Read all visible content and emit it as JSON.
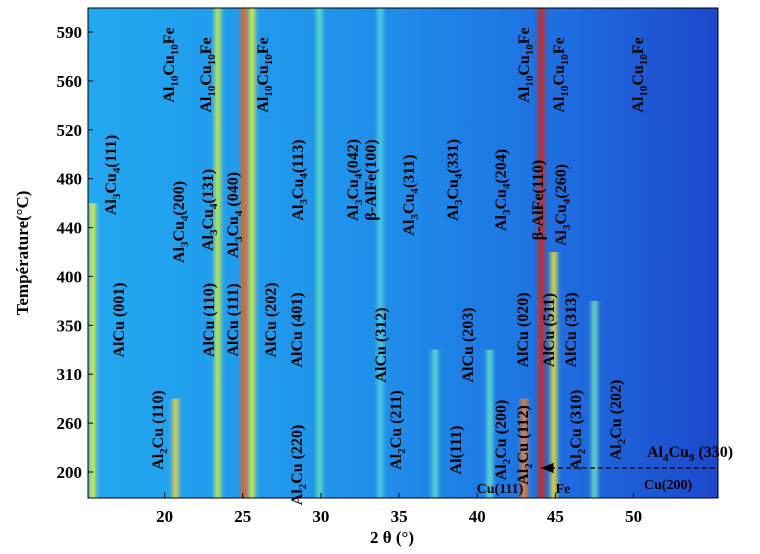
{
  "chart_data": {
    "type": "xrd_map",
    "x_label": "2 θ (°)",
    "y_label": "Température(°C)",
    "xlim": [
      15.1,
      55.4
    ],
    "xticks": [
      20,
      25,
      30,
      35,
      40,
      45,
      50
    ],
    "y_categories": [
      200,
      260,
      310,
      350,
      400,
      440,
      480,
      520,
      560,
      590
    ],
    "peaks": [
      {
        "x": 15.4,
        "color": "#e8f040",
        "t": [
          200,
          440
        ]
      },
      {
        "x": 20.7,
        "color": "#f0d040",
        "t": [
          200,
          260
        ]
      },
      {
        "x": 23.4,
        "color": "#c8f050",
        "t": [
          200,
          590
        ]
      },
      {
        "x": 25.1,
        "color": "#ff6010",
        "t": [
          200,
          590
        ]
      },
      {
        "x": 25.6,
        "color": "#e0f040",
        "t": [
          200,
          590
        ]
      },
      {
        "x": 29.9,
        "color": "#60e0c0",
        "t": [
          200,
          590
        ]
      },
      {
        "x": 33.8,
        "color": "#50d0e0",
        "t": [
          200,
          590
        ]
      },
      {
        "x": 37.3,
        "color": "#60e0d0",
        "t": [
          200,
          310
        ]
      },
      {
        "x": 40.8,
        "color": "#60e0d0",
        "t": [
          200,
          310
        ]
      },
      {
        "x": 43.0,
        "color": "#ff8020",
        "t": [
          200,
          260
        ]
      },
      {
        "x": 44.1,
        "color": "#e02010",
        "t": [
          200,
          590
        ]
      },
      {
        "x": 44.9,
        "color": "#f0e030",
        "t": [
          200,
          400
        ]
      },
      {
        "x": 47.5,
        "color": "#70e0c0",
        "t": [
          200,
          350
        ]
      }
    ],
    "annotations": [
      {
        "parts": [
          "Al",
          "3",
          "Cu",
          "4",
          "(111)"
        ]
      },
      {
        "parts": [
          "AlCu (001)"
        ]
      },
      {
        "parts": [
          "Al",
          "2",
          "Cu (110)"
        ]
      },
      {
        "parts": [
          "Al",
          "10",
          "Cu",
          "10",
          "Fe"
        ]
      },
      {
        "parts": [
          "Al",
          "3",
          "Cu",
          "4",
          "(200)"
        ]
      },
      {
        "parts": [
          "Al",
          "10",
          "Cu",
          "10",
          "Fe"
        ]
      },
      {
        "parts": [
          "Al",
          "3",
          "Cu",
          "4",
          "(131)"
        ]
      },
      {
        "parts": [
          "AlCu (110)"
        ]
      },
      {
        "parts": [
          "Al",
          "3",
          "Cu",
          "4",
          " (040)"
        ]
      },
      {
        "parts": [
          "AlCu (111)"
        ]
      },
      {
        "parts": [
          "Al",
          "10",
          "Cu",
          "10",
          "Fe"
        ]
      },
      {
        "parts": [
          "AlCu (202)"
        ]
      },
      {
        "parts": [
          "Al",
          "3",
          "Cu",
          "4",
          "(113)"
        ]
      },
      {
        "parts": [
          "AlCu (401)"
        ]
      },
      {
        "parts": [
          "Al",
          "2",
          "Cu (220)"
        ]
      },
      {
        "parts": [
          "Al",
          "3",
          "Cu",
          "4",
          "(042)"
        ]
      },
      {
        "parts": [
          "β-AlFe(100)"
        ]
      },
      {
        "parts": [
          "AlCu (312)"
        ]
      },
      {
        "parts": [
          "Al",
          "3",
          "Cu",
          "4",
          "(311)"
        ]
      },
      {
        "parts": [
          "Al",
          "3",
          "Cu",
          "4",
          "(331)"
        ]
      },
      {
        "parts": [
          "AlCu (203)"
        ]
      },
      {
        "parts": [
          "Al",
          "2",
          "Cu (211)"
        ]
      },
      {
        "parts": [
          "Al(111)"
        ]
      },
      {
        "parts": [
          "Al",
          "3",
          "Cu",
          "4",
          "(204)"
        ]
      },
      {
        "parts": [
          "Al",
          "2",
          "Cu (200)"
        ]
      },
      {
        "parts": [
          "Al",
          "10",
          "Cu",
          "10",
          "Fe"
        ]
      },
      {
        "parts": [
          "Al",
          "2",
          "Cu (112)"
        ]
      },
      {
        "parts": [
          "AlCu (020)"
        ]
      },
      {
        "parts": [
          "β-AlFe(110)"
        ]
      },
      {
        "parts": [
          "AlCu (511)"
        ]
      },
      {
        "parts": [
          "Al",
          "10",
          "Cu",
          "10",
          "Fe"
        ]
      },
      {
        "parts": [
          "Al",
          "3",
          "Cu",
          "4",
          "(260)"
        ]
      },
      {
        "parts": [
          "AlCu (313)"
        ]
      },
      {
        "parts": [
          "Al",
          "2",
          "Cu (310)"
        ]
      },
      {
        "parts": [
          "Al",
          "2",
          "Cu (202)"
        ]
      },
      {
        "parts": [
          "Al",
          "10",
          "Cu",
          "10",
          "Fe"
        ]
      },
      {
        "parts": [
          "Cu(111)"
        ]
      },
      {
        "parts": [
          "Fe"
        ]
      },
      {
        "parts": [
          "Al",
          "4",
          "Cu",
          "9",
          " (330)"
        ]
      },
      {
        "parts": [
          "Cu(200)"
        ]
      }
    ]
  }
}
